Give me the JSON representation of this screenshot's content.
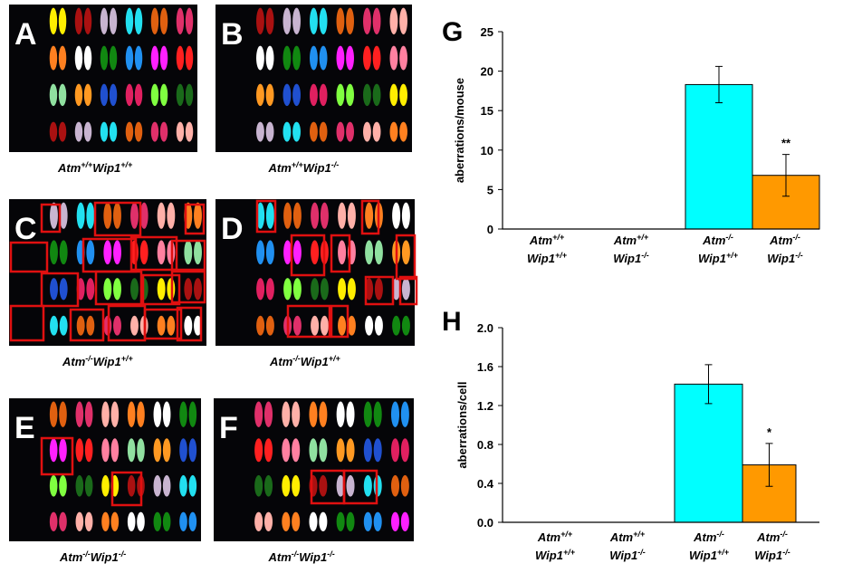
{
  "panels": [
    {
      "letter": "A",
      "caption": "Atm+/+Wip1+/+"
    },
    {
      "letter": "B",
      "caption": "Atm+/+Wip1-/-"
    },
    {
      "letter": "C",
      "caption": "Atm-/-Wip1+/+"
    },
    {
      "letter": "D",
      "caption": "Atm-/-Wip1+/+"
    },
    {
      "letter": "E",
      "caption": "Atm-/-Wip1-/-"
    },
    {
      "letter": "F",
      "caption": "Atm-/-Wip1-/-"
    }
  ],
  "chart_data": [
    {
      "type": "bar",
      "label": "G",
      "y_label": "aberrations/mouse",
      "categories": [
        "Atm+/+ Wip1+/+",
        "Atm+/+ Wip1-/-",
        "Atm-/- Wip1+/+",
        "Atm-/- Wip1-/-"
      ],
      "values": [
        0,
        0,
        18.3,
        6.8
      ],
      "errors": [
        0,
        0,
        2.3,
        2.65
      ],
      "significance": [
        null,
        null,
        null,
        "**"
      ],
      "colors": [
        "#00ffff",
        "#00ffff",
        "#00ffff",
        "#ff9900"
      ],
      "ylim": [
        0,
        25
      ],
      "yticks": [
        0,
        5,
        10,
        15,
        20,
        25
      ]
    },
    {
      "type": "bar",
      "label": "H",
      "y_label": "aberrations/cell",
      "categories": [
        "Atm+/+ Wip1+/+",
        "Atm+/+ Wip1-/-",
        "Atm-/- Wip1+/+",
        "Atm-/- Wip1-/-"
      ],
      "values": [
        0,
        0,
        1.42,
        0.59
      ],
      "errors": [
        0,
        0,
        0.2,
        0.22
      ],
      "significance": [
        null,
        null,
        null,
        "*"
      ],
      "colors": [
        "#00ffff",
        "#00ffff",
        "#00ffff",
        "#ff9900"
      ],
      "ylim": [
        0,
        2
      ],
      "yticks": [
        {
          "value": 0,
          "label": "0.0"
        },
        0.4,
        0.8,
        1.2,
        1.6,
        {
          "value": 2,
          "label": "2.0"
        }
      ]
    }
  ]
}
